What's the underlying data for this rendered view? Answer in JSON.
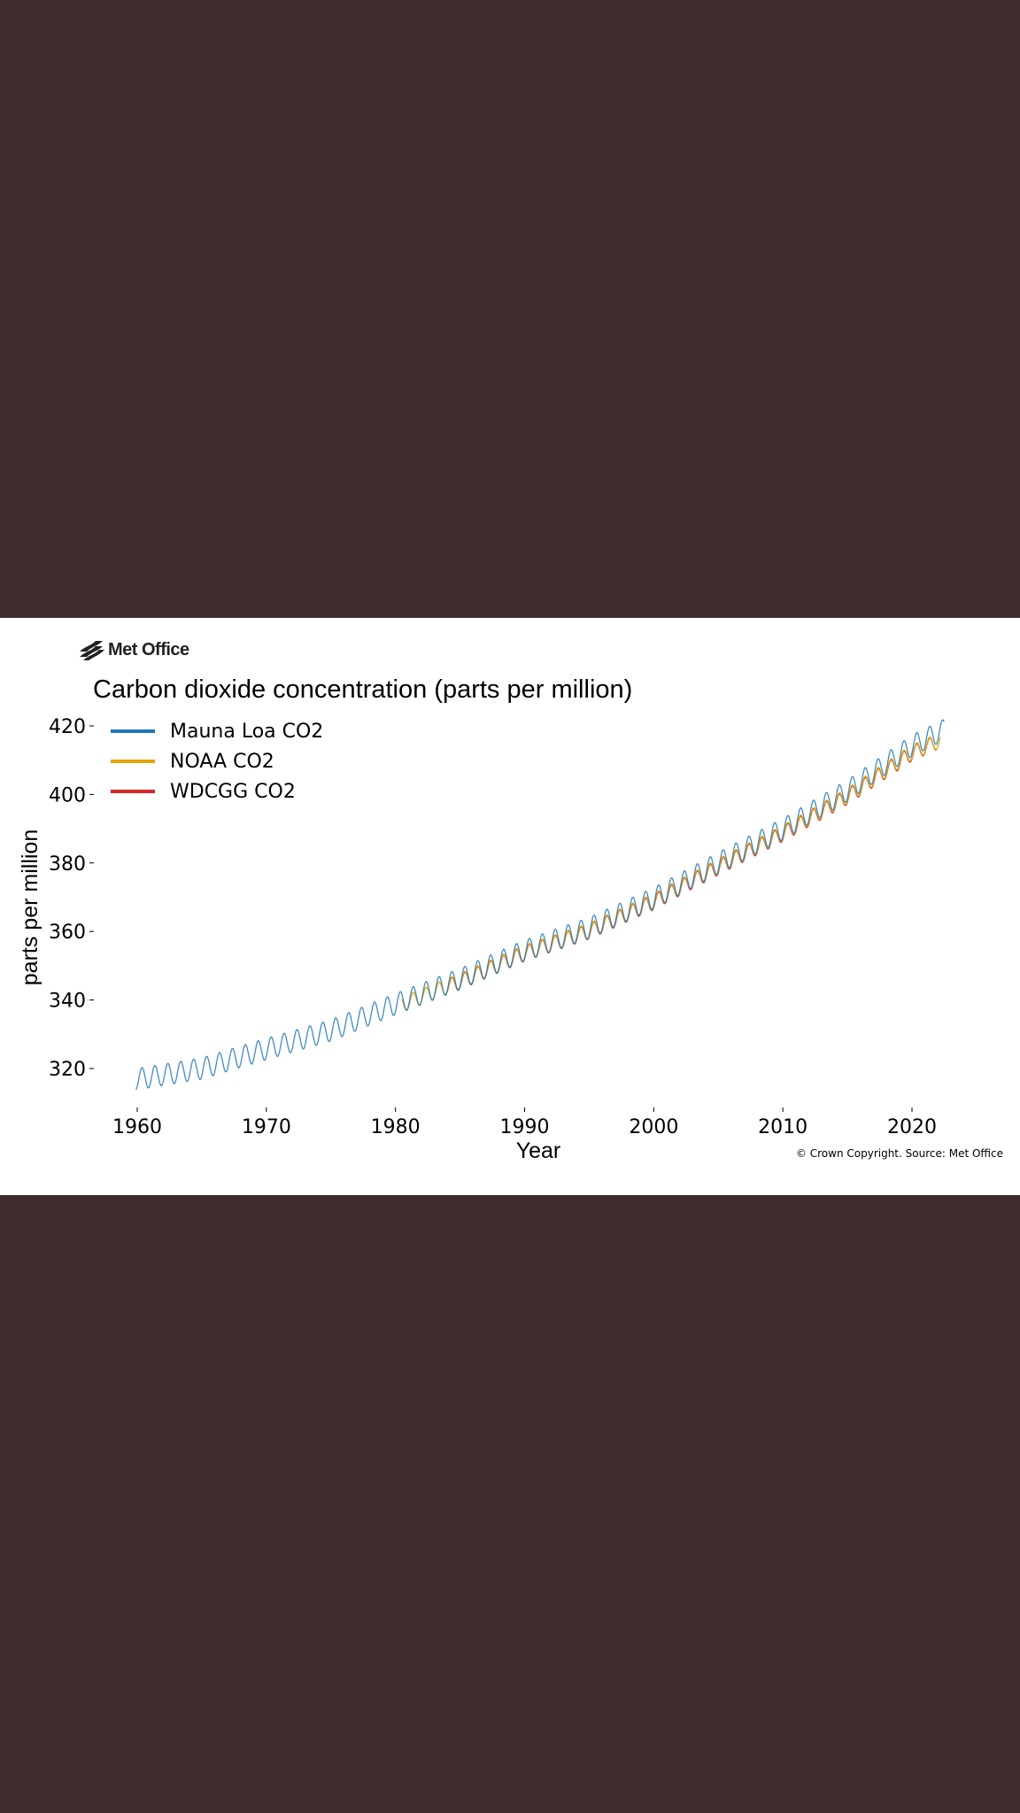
{
  "brand": {
    "logo_text": "Met Office",
    "logo_icon": "met-office-wave-icon"
  },
  "chart_data": {
    "type": "line",
    "title": "Carbon dioxide concentration (parts per million)",
    "xlabel": "Year",
    "ylabel": "parts per million",
    "xlim": [
      1957,
      2026
    ],
    "ylim": [
      310,
      423
    ],
    "x_ticks": [
      1960,
      1970,
      1980,
      1990,
      2000,
      2010,
      2020
    ],
    "y_ticks": [
      320,
      340,
      360,
      380,
      400,
      420
    ],
    "grid": false,
    "legend_position": "top-left",
    "series": [
      {
        "name": "Mauna Loa CO2",
        "color": "#1f77b4",
        "start": 1959.9,
        "end": 2022.5,
        "seasonal_amplitude": 3.1,
        "trend": [
          [
            1960,
            316.9
          ],
          [
            1965,
            320.0
          ],
          [
            1970,
            325.7
          ],
          [
            1975,
            331.1
          ],
          [
            1980,
            338.8
          ],
          [
            1985,
            346.1
          ],
          [
            1990,
            354.4
          ],
          [
            1995,
            361.0
          ],
          [
            2000,
            369.7
          ],
          [
            2005,
            380.0
          ],
          [
            2010,
            389.9
          ],
          [
            2015,
            401.1
          ],
          [
            2020,
            414.2
          ],
          [
            2022.5,
            418.9
          ]
        ]
      },
      {
        "name": "NOAA CO2",
        "color": "#e5a50a",
        "start": 1980.5,
        "end": 2022.2,
        "seasonal_amplitude": 2.2,
        "trend": [
          [
            1980.5,
            338.7
          ],
          [
            1985,
            345.5
          ],
          [
            1990,
            353.8
          ],
          [
            1995,
            360.2
          ],
          [
            2000,
            368.9
          ],
          [
            2005,
            379.0
          ],
          [
            2010,
            388.8
          ],
          [
            2015,
            399.6
          ],
          [
            2020,
            412.3
          ],
          [
            2022.2,
            415.8
          ]
        ]
      },
      {
        "name": "WDCGG CO2",
        "color": "#d62728",
        "start": 1984.0,
        "end": 2021.9,
        "seasonal_amplitude": 2.2,
        "trend": [
          [
            1984,
            343.8
          ],
          [
            1985,
            345.3
          ],
          [
            1990,
            353.6
          ],
          [
            1995,
            360.0
          ],
          [
            2000,
            368.6
          ],
          [
            2005,
            378.7
          ],
          [
            2010,
            388.5
          ],
          [
            2015,
            399.3
          ],
          [
            2020,
            412.0
          ],
          [
            2021.9,
            415.2
          ]
        ]
      }
    ]
  },
  "footer": {
    "copyright": "© Crown Copyright. Source: Met Office"
  }
}
